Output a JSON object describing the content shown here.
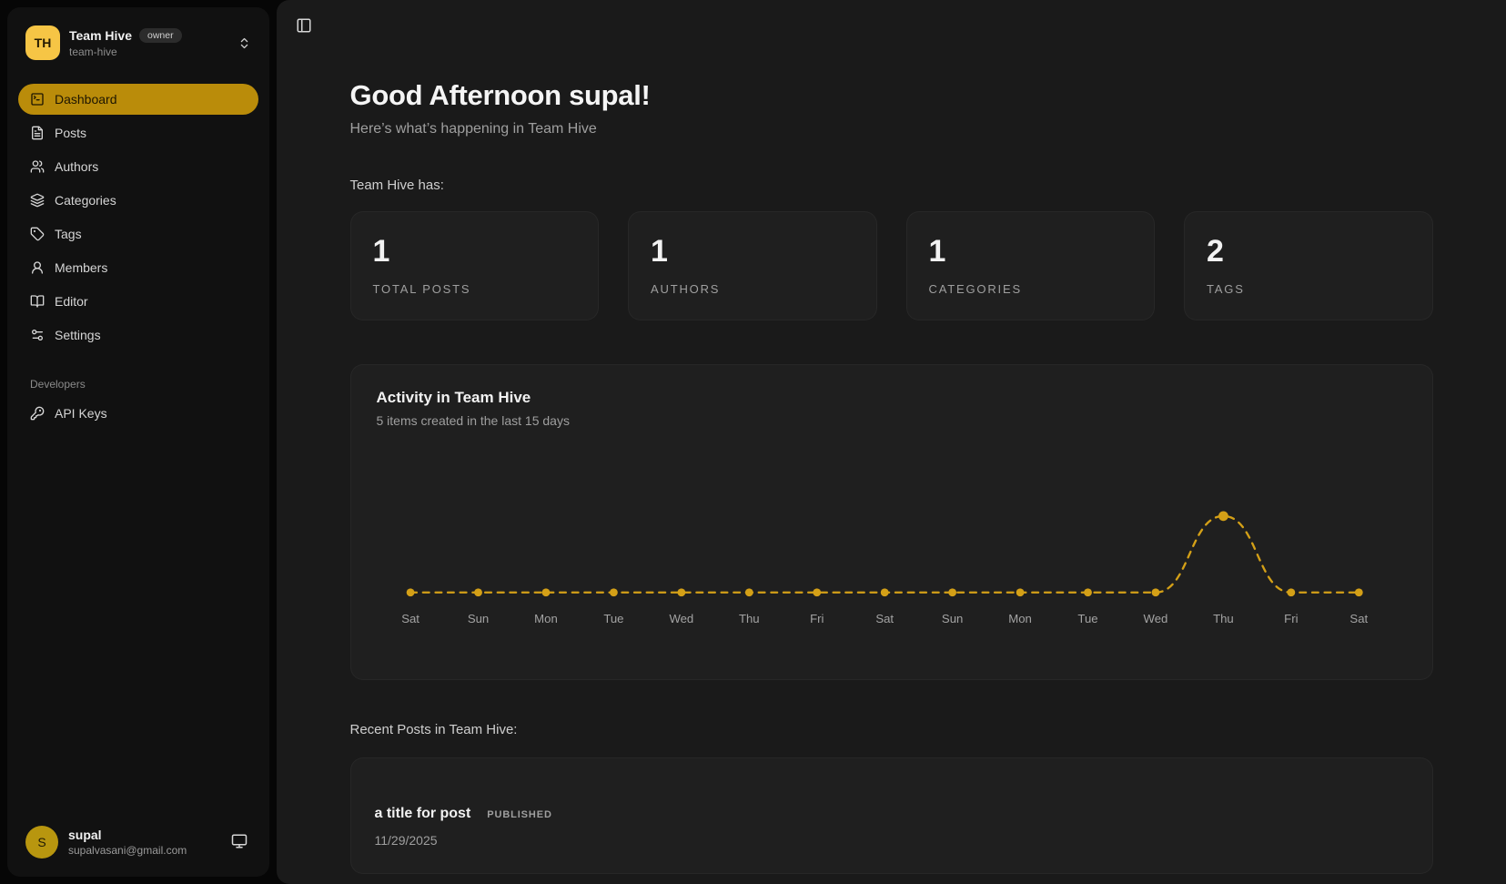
{
  "colors": {
    "gold-bright": "#F6C545",
    "gold-active": "#BA8C0A",
    "gold-user": "#B8960F",
    "gold-chart": "#D4A017",
    "axis-label": "#a3a3a3"
  },
  "sidebar": {
    "team": {
      "initials": "TH",
      "name": "Team Hive",
      "badge": "owner",
      "slug": "team-hive"
    },
    "nav": [
      {
        "label": "Dashboard",
        "icon": "square-terminal-icon",
        "active": true
      },
      {
        "label": "Posts",
        "icon": "file-text-icon",
        "active": false
      },
      {
        "label": "Authors",
        "icon": "users-icon",
        "active": false
      },
      {
        "label": "Categories",
        "icon": "layers-icon",
        "active": false
      },
      {
        "label": "Tags",
        "icon": "tag-icon",
        "active": false
      },
      {
        "label": "Members",
        "icon": "user-round-icon",
        "active": false
      },
      {
        "label": "Editor",
        "icon": "book-open-icon",
        "active": false
      },
      {
        "label": "Settings",
        "icon": "sliders-icon",
        "active": false
      }
    ],
    "section_label": "Developers",
    "dev_nav": [
      {
        "label": "API Keys",
        "icon": "key-icon",
        "active": false
      }
    ],
    "user": {
      "initial": "S",
      "name": "supal",
      "email": "supalvasani@gmail.com"
    }
  },
  "header": {
    "greeting": "Good Afternoon supal!",
    "subtitle": "Here’s what’s happening in Team Hive"
  },
  "stats": {
    "intro": "Team Hive has:",
    "cards": [
      {
        "value": "1",
        "label": "TOTAL POSTS"
      },
      {
        "value": "1",
        "label": "AUTHORS"
      },
      {
        "value": "1",
        "label": "CATEGORIES"
      },
      {
        "value": "2",
        "label": "TAGS"
      }
    ]
  },
  "activity": {
    "title": "Activity in Team Hive",
    "subtitle": "5 items created in the last 15 days"
  },
  "chart_data": {
    "type": "line",
    "title": "Activity in Team Hive",
    "categories": [
      "Sat",
      "Sun",
      "Mon",
      "Tue",
      "Wed",
      "Thu",
      "Fri",
      "Sat",
      "Sun",
      "Mon",
      "Tue",
      "Wed",
      "Thu",
      "Fri",
      "Sat"
    ],
    "values": [
      0,
      0,
      0,
      0,
      0,
      0,
      0,
      0,
      0,
      0,
      0,
      0,
      5,
      0,
      0
    ],
    "ylim": [
      0,
      5
    ],
    "xlabel": "",
    "ylabel": "",
    "grid": false,
    "legend": false,
    "style": "dashed-line-with-dots"
  },
  "recent": {
    "heading": "Recent Posts in Team Hive:",
    "posts": [
      {
        "title": "a title for post",
        "status": "PUBLISHED",
        "date": "11/29/2025"
      }
    ]
  }
}
